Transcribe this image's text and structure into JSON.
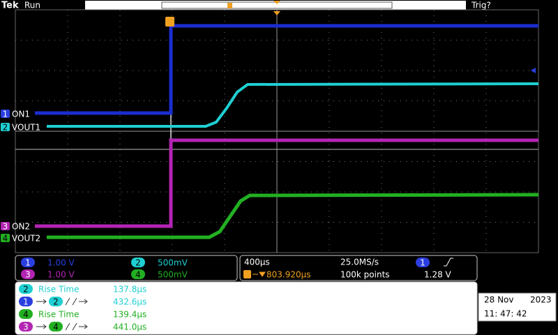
{
  "header": {
    "brand": "Tek",
    "state": "Run",
    "trigger_status": "Trig?"
  },
  "channels": [
    {
      "number": "1",
      "label": "ON1"
    },
    {
      "number": "2",
      "label": "VOUT1"
    },
    {
      "number": "3",
      "label": "ON2"
    },
    {
      "number": "4",
      "label": "VOUT2"
    }
  ],
  "vertical": [
    {
      "channel": "1",
      "scale": "1.00 V"
    },
    {
      "channel": "2",
      "scale": "500mV"
    },
    {
      "channel": "3",
      "scale": "1.00 V"
    },
    {
      "channel": "4",
      "scale": "500mV"
    }
  ],
  "horizontal": {
    "timebase": "400µs",
    "sample_rate": "25.0MS/s",
    "trigger_channel": "1",
    "trigger_position": "803.920µs",
    "record_length": "100k points",
    "trigger_level": "1.28 V"
  },
  "measurements": [
    {
      "source": "2",
      "name": "Rise Time",
      "value": "137.8µs"
    },
    {
      "source": "1",
      "target": "2",
      "value": "432.6µs"
    },
    {
      "source": "4",
      "name": "Rise Time",
      "value": "139.4µs"
    },
    {
      "source": "3",
      "target": "4",
      "value": "441.0µs"
    }
  ],
  "datetime": {
    "date": "28 Nov",
    "year": "2023",
    "time": "11: 47: 42"
  }
}
